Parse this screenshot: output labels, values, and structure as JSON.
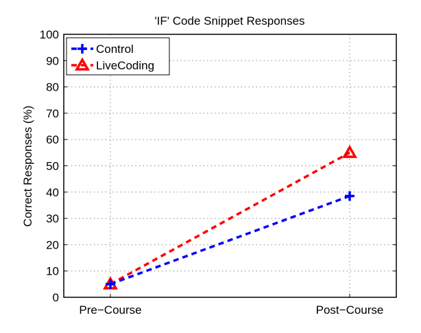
{
  "chart_data": {
    "type": "line",
    "title": "'IF' Code Snippet Responses",
    "xlabel": "",
    "ylabel": "Correct Responses (%)",
    "categories": [
      "Pre−Course",
      "Post−Course"
    ],
    "ylim": [
      0,
      100
    ],
    "yticks": [
      0,
      10,
      20,
      30,
      40,
      50,
      60,
      70,
      80,
      90,
      100
    ],
    "grid": true,
    "legend_position": "top-left",
    "series": [
      {
        "name": "Control",
        "values": [
          5,
          38.5
        ],
        "color": "#0000ff",
        "marker": "plus"
      },
      {
        "name": "LiveCoding",
        "values": [
          5,
          55
        ],
        "color": "#ff0000",
        "marker": "triangle"
      }
    ]
  }
}
